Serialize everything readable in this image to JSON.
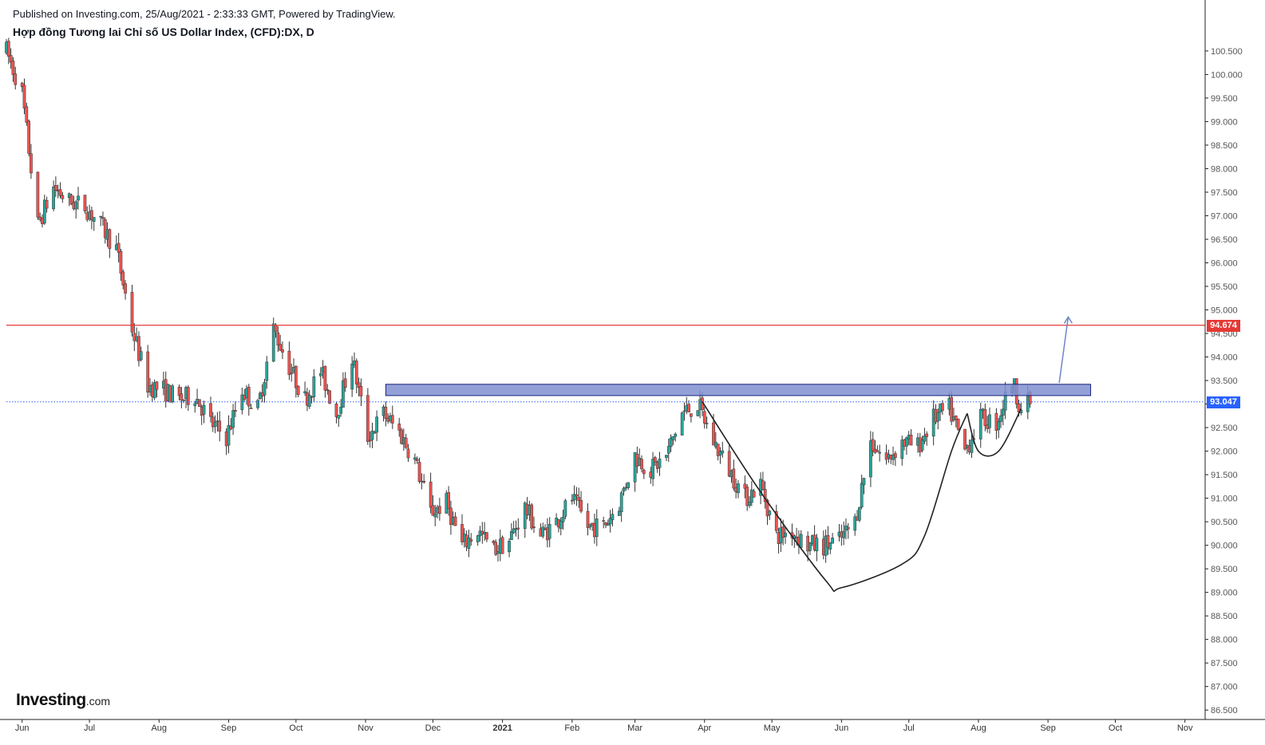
{
  "header": {
    "published": "Published on Investing.com, 25/Aug/2021 - 2:33:33 GMT, Powered by TradingView.",
    "title": "Hợp đồng Tương lai Chỉ số US Dollar Index, (CFD):DX, D"
  },
  "logo": {
    "brand": "Investing",
    "domain": ".com"
  },
  "colors": {
    "up": "#26a69a",
    "down": "#ef5350",
    "resistance_line": "#e53935",
    "last_price_line": "#2962ff",
    "zone_fill": "#7f8fd0",
    "zone_stroke": "#1a237e",
    "pattern_curve": "#222222",
    "arrow": "#6f86c8"
  },
  "chart_data": {
    "type": "candlestick",
    "symbol": "DX",
    "interval": "D",
    "ylim": [
      86.3,
      100.6
    ],
    "y_ticks": [
      "86.500",
      "87.000",
      "87.500",
      "88.000",
      "88.500",
      "89.000",
      "89.500",
      "90.000",
      "90.500",
      "91.000",
      "91.500",
      "92.000",
      "92.500",
      "93.000",
      "93.500",
      "94.000",
      "94.500",
      "95.000",
      "95.500",
      "96.000",
      "96.500",
      "97.000",
      "97.500",
      "98.000",
      "98.500",
      "99.000",
      "99.500",
      "100.000",
      "100.500"
    ],
    "x_labels": [
      {
        "label": "Jun",
        "date": "2020-06-01"
      },
      {
        "label": "Jul",
        "date": "2020-07-01"
      },
      {
        "label": "Aug",
        "date": "2020-08-01"
      },
      {
        "label": "Sep",
        "date": "2020-09-01"
      },
      {
        "label": "Oct",
        "date": "2020-10-01"
      },
      {
        "label": "Nov",
        "date": "2020-11-01"
      },
      {
        "label": "Dec",
        "date": "2020-12-01"
      },
      {
        "label": "2021",
        "date": "2021-01-01",
        "bold": true
      },
      {
        "label": "Feb",
        "date": "2021-02-01"
      },
      {
        "label": "Mar",
        "date": "2021-03-01"
      },
      {
        "label": "Apr",
        "date": "2021-04-01"
      },
      {
        "label": "May",
        "date": "2021-05-01"
      },
      {
        "label": "Jun",
        "date": "2021-06-01"
      },
      {
        "label": "Jul",
        "date": "2021-07-01"
      },
      {
        "label": "Aug",
        "date": "2021-08-01"
      },
      {
        "label": "Sep",
        "date": "2021-09-01"
      },
      {
        "label": "Oct",
        "date": "2021-10-01"
      },
      {
        "label": "Nov",
        "date": "2021-11-01"
      }
    ],
    "price_path": [
      [
        "2020-05-25",
        100.5
      ],
      [
        "2020-06-01",
        99.6
      ],
      [
        "2020-06-08",
        96.8
      ],
      [
        "2020-06-15",
        97.6
      ],
      [
        "2020-06-22",
        97.3
      ],
      [
        "2020-06-29",
        97.2
      ],
      [
        "2020-07-06",
        96.8
      ],
      [
        "2020-07-13",
        96.3
      ],
      [
        "2020-07-20",
        94.6
      ],
      [
        "2020-07-27",
        93.4
      ],
      [
        "2020-08-03",
        93.3
      ],
      [
        "2020-08-10",
        93.1
      ],
      [
        "2020-08-17",
        93.2
      ],
      [
        "2020-08-24",
        92.6
      ],
      [
        "2020-08-31",
        92.3
      ],
      [
        "2020-09-07",
        93.3
      ],
      [
        "2020-09-14",
        92.9
      ],
      [
        "2020-09-21",
        94.6
      ],
      [
        "2020-09-28",
        93.8
      ],
      [
        "2020-10-05",
        93.1
      ],
      [
        "2020-10-12",
        93.7
      ],
      [
        "2020-10-19",
        92.8
      ],
      [
        "2020-10-26",
        94.0
      ],
      [
        "2020-11-02",
        92.3
      ],
      [
        "2020-11-09",
        92.8
      ],
      [
        "2020-11-16",
        92.4
      ],
      [
        "2020-11-23",
        91.8
      ],
      [
        "2020-11-30",
        90.7
      ],
      [
        "2020-12-07",
        90.9
      ],
      [
        "2020-12-14",
        90.0
      ],
      [
        "2020-12-21",
        90.3
      ],
      [
        "2020-12-28",
        89.9
      ],
      [
        "2021-01-04",
        90.1
      ],
      [
        "2021-01-11",
        90.8
      ],
      [
        "2021-01-18",
        90.2
      ],
      [
        "2021-01-25",
        90.5
      ],
      [
        "2021-02-01",
        91.0
      ],
      [
        "2021-02-08",
        90.4
      ],
      [
        "2021-02-15",
        90.4
      ],
      [
        "2021-02-22",
        90.9
      ],
      [
        "2021-03-01",
        91.9
      ],
      [
        "2021-03-08",
        91.6
      ],
      [
        "2021-03-15",
        91.9
      ],
      [
        "2021-03-22",
        92.8
      ],
      [
        "2021-03-29",
        93.0
      ],
      [
        "2021-04-05",
        92.2
      ],
      [
        "2021-04-12",
        91.6
      ],
      [
        "2021-04-19",
        91.0
      ],
      [
        "2021-04-26",
        91.3
      ],
      [
        "2021-05-03",
        90.2
      ],
      [
        "2021-05-10",
        90.3
      ],
      [
        "2021-05-17",
        90.0
      ],
      [
        "2021-05-24",
        90.0
      ],
      [
        "2021-05-31",
        90.1
      ],
      [
        "2021-06-07",
        90.5
      ],
      [
        "2021-06-14",
        92.2
      ],
      [
        "2021-06-21",
        91.8
      ],
      [
        "2021-06-28",
        92.2
      ],
      [
        "2021-07-05",
        92.1
      ],
      [
        "2021-07-12",
        92.7
      ],
      [
        "2021-07-19",
        92.9
      ],
      [
        "2021-07-26",
        92.0
      ],
      [
        "2021-08-02",
        92.7
      ],
      [
        "2021-08-09",
        92.6
      ],
      [
        "2021-08-16",
        93.5
      ],
      [
        "2021-08-20",
        92.9
      ],
      [
        "2021-08-24",
        93.05
      ]
    ],
    "annotations": {
      "resistance_level": {
        "value": 94.674,
        "label": "94.674"
      },
      "last_price": {
        "value": 93.047,
        "label": "93.047"
      },
      "zone": {
        "from": "2020-11-10",
        "to": "2021-09-20",
        "top": 93.42,
        "bottom": 93.18
      },
      "cup": [
        [
          "2021-03-31",
          93.05
        ],
        [
          "2021-04-25",
          91.2
        ],
        [
          "2021-05-25",
          89.25
        ],
        [
          "2021-06-01",
          89.1
        ],
        [
          "2021-06-28",
          89.6
        ],
        [
          "2021-07-08",
          90.2
        ],
        [
          "2021-07-20",
          92.0
        ],
        [
          "2021-07-27",
          92.8
        ]
      ],
      "handle": [
        [
          "2021-07-27",
          92.8
        ],
        [
          "2021-08-01",
          92.0
        ],
        [
          "2021-08-10",
          92.0
        ],
        [
          "2021-08-20",
          92.9
        ]
      ],
      "arrow": {
        "from": [
          "2021-09-06",
          93.45
        ],
        "to": [
          "2021-09-10",
          94.85
        ]
      }
    }
  }
}
